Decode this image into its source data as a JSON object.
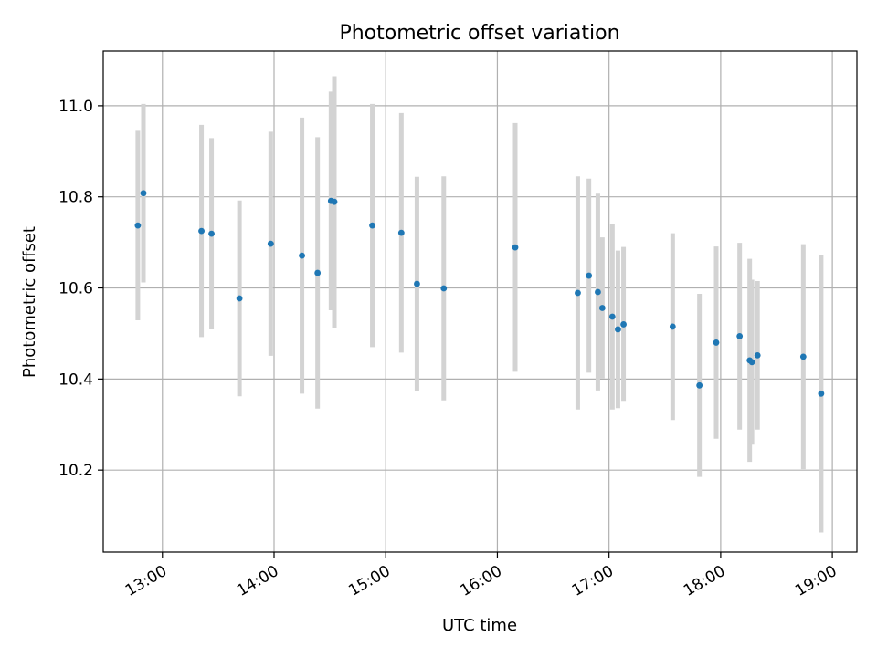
{
  "chart_data": {
    "type": "scatter",
    "title": "Photometric offset variation",
    "xlabel": "UTC time",
    "ylabel": "Photometric offset",
    "xlim_hours": [
      12.47,
      19.22
    ],
    "ylim": [
      10.02,
      11.12
    ],
    "grid": true,
    "x_ticks": [
      {
        "value": 13,
        "label": "13:00"
      },
      {
        "value": 14,
        "label": "14:00"
      },
      {
        "value": 15,
        "label": "15:00"
      },
      {
        "value": 16,
        "label": "16:00"
      },
      {
        "value": 17,
        "label": "17:00"
      },
      {
        "value": 18,
        "label": "18:00"
      },
      {
        "value": 19,
        "label": "19:00"
      }
    ],
    "y_ticks": [
      {
        "value": 10.2,
        "label": "10.2"
      },
      {
        "value": 10.4,
        "label": "10.4"
      },
      {
        "value": 10.6,
        "label": "10.6"
      },
      {
        "value": 10.8,
        "label": "10.8"
      },
      {
        "value": 11.0,
        "label": "11.0"
      }
    ],
    "point_color": "#1f77b4",
    "errorbar_color": "#d3d3d3",
    "points": [
      {
        "x": 12.78,
        "y": 10.737,
        "err": 0.208
      },
      {
        "x": 12.83,
        "y": 10.808,
        "err": 0.196
      },
      {
        "x": 13.35,
        "y": 10.725,
        "err": 0.233
      },
      {
        "x": 13.44,
        "y": 10.719,
        "err": 0.21
      },
      {
        "x": 13.69,
        "y": 10.577,
        "err": 0.215
      },
      {
        "x": 13.97,
        "y": 10.697,
        "err": 0.246
      },
      {
        "x": 14.25,
        "y": 10.671,
        "err": 0.303
      },
      {
        "x": 14.39,
        "y": 10.633,
        "err": 0.298
      },
      {
        "x": 14.51,
        "y": 10.791,
        "err": 0.24
      },
      {
        "x": 14.54,
        "y": 10.789,
        "err": 0.276
      },
      {
        "x": 14.88,
        "y": 10.737,
        "err": 0.267
      },
      {
        "x": 15.14,
        "y": 10.721,
        "err": 0.263
      },
      {
        "x": 15.28,
        "y": 10.609,
        "err": 0.235
      },
      {
        "x": 15.52,
        "y": 10.599,
        "err": 0.246
      },
      {
        "x": 16.16,
        "y": 10.689,
        "err": 0.273
      },
      {
        "x": 16.72,
        "y": 10.589,
        "err": 0.256
      },
      {
        "x": 16.82,
        "y": 10.627,
        "err": 0.213
      },
      {
        "x": 16.9,
        "y": 10.591,
        "err": 0.216
      },
      {
        "x": 16.94,
        "y": 10.556,
        "err": 0.155
      },
      {
        "x": 17.03,
        "y": 10.537,
        "err": 0.204
      },
      {
        "x": 17.08,
        "y": 10.509,
        "err": 0.173
      },
      {
        "x": 17.13,
        "y": 10.52,
        "err": 0.17
      },
      {
        "x": 17.57,
        "y": 10.515,
        "err": 0.205
      },
      {
        "x": 17.81,
        "y": 10.386,
        "err": 0.201
      },
      {
        "x": 17.96,
        "y": 10.48,
        "err": 0.211
      },
      {
        "x": 18.17,
        "y": 10.494,
        "err": 0.205
      },
      {
        "x": 18.26,
        "y": 10.441,
        "err": 0.223
      },
      {
        "x": 18.28,
        "y": 10.437,
        "err": 0.181
      },
      {
        "x": 18.33,
        "y": 10.452,
        "err": 0.163
      },
      {
        "x": 18.74,
        "y": 10.449,
        "err": 0.247
      },
      {
        "x": 18.9,
        "y": 10.368,
        "err": 0.305
      }
    ]
  }
}
